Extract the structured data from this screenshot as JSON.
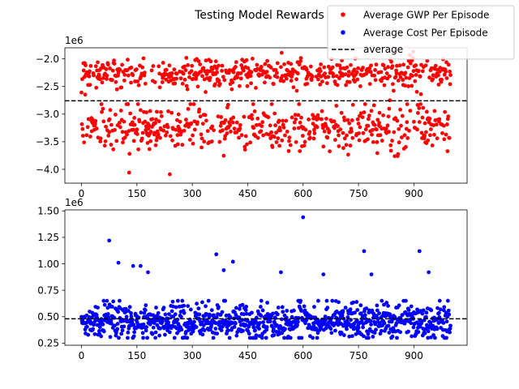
{
  "title": "Testing Model Rewards",
  "chart_data": [
    {
      "type": "scatter",
      "panel": "top",
      "offset_label": "1e6",
      "xlim": [
        -45,
        1044
      ],
      "ylim": [
        -4.25,
        -1.8
      ],
      "xticks": [
        0,
        150,
        300,
        450,
        600,
        750,
        900
      ],
      "xtick_labels": [
        "0",
        "150",
        "300",
        "450",
        "600",
        "750",
        "900"
      ],
      "yticks": [
        -4.0,
        -3.5,
        -3.0,
        -2.5,
        -2.0
      ],
      "ytick_labels": [
        "−4.0",
        "−3.5",
        "−3.0",
        "−2.5",
        "−2.0"
      ],
      "average": -2.76,
      "x_range": [
        0,
        999
      ],
      "n_points": 1000,
      "clusters": [
        {
          "center": -2.25,
          "spread": 0.13,
          "range": [
            -2.75,
            -1.87
          ]
        },
        {
          "center": -3.25,
          "spread": 0.2,
          "range": [
            -4.15,
            -2.82
          ]
        }
      ],
      "series": [
        {
          "name": "Average GWP Per Episode",
          "color": "#ff0000",
          "marker": "point"
        },
        {
          "name": "average",
          "color": "#000000",
          "style": "dashed"
        }
      ]
    },
    {
      "type": "scatter",
      "panel": "bottom",
      "offset_label": "1e6",
      "xlim": [
        -45,
        1044
      ],
      "ylim": [
        0.23,
        1.51
      ],
      "xticks": [
        0,
        150,
        300,
        450,
        600,
        750,
        900
      ],
      "xtick_labels": [
        "0",
        "150",
        "300",
        "450",
        "600",
        "750",
        "900"
      ],
      "yticks": [
        0.25,
        0.5,
        0.75,
        1.0,
        1.25,
        1.5
      ],
      "ytick_labels": [
        "0.25",
        "0.50",
        "0.75",
        "1.00",
        "1.25",
        "1.50"
      ],
      "average": 0.48,
      "x_range": [
        0,
        999
      ],
      "n_points": 1000,
      "base": {
        "center": 0.45,
        "spread": 0.08,
        "range": [
          0.3,
          0.65
        ]
      },
      "outliers": [
        [
          75,
          1.22
        ],
        [
          100,
          1.01
        ],
        [
          140,
          0.98
        ],
        [
          160,
          0.98
        ],
        [
          180,
          0.92
        ],
        [
          365,
          1.09
        ],
        [
          385,
          0.94
        ],
        [
          410,
          1.02
        ],
        [
          540,
          0.92
        ],
        [
          600,
          1.44
        ],
        [
          655,
          0.9
        ],
        [
          765,
          1.12
        ],
        [
          785,
          0.9
        ],
        [
          915,
          1.12
        ],
        [
          940,
          0.92
        ]
      ],
      "series": [
        {
          "name": "Average Cost Per Episode",
          "color": "#0000ff",
          "marker": "point"
        },
        {
          "name": "average",
          "color": "#000000",
          "style": "dashed"
        }
      ]
    }
  ],
  "legend": {
    "placement": "upper-right",
    "items": [
      {
        "label": "Average GWP Per Episode",
        "color": "#ff0000",
        "kind": "dot"
      },
      {
        "label": "Average Cost Per Episode",
        "color": "#0000ff",
        "kind": "dot"
      },
      {
        "label": "average",
        "color": "#000000",
        "kind": "dash"
      }
    ]
  }
}
